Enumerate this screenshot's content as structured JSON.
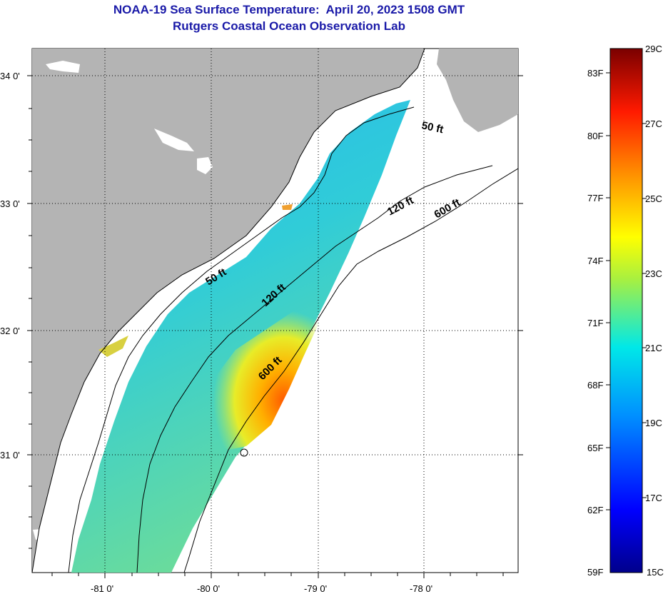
{
  "header": {
    "title": "NOAA-19 Sea Surface Temperature:  April 20, 2023 1508 GMT",
    "subtitle": "Rutgers Coastal Ocean Observation Lab"
  },
  "map": {
    "lat_labels": [
      "34 0'",
      "33 0'",
      "32 0'",
      "31 0'"
    ],
    "lon_labels": [
      "-81 0'",
      "-80 0'",
      "-79 0'",
      "-78 0'"
    ],
    "contour_labels": [
      "50 ft",
      "120 ft",
      "600 ft",
      "50 ft",
      "120 ft",
      "600 ft"
    ],
    "land_color": "#b4b4b4",
    "ocean_color": "#ffffff"
  },
  "colorbar": {
    "fahrenheit_labels": [
      "83F",
      "80F",
      "77F",
      "74F",
      "71F",
      "68F",
      "65F",
      "62F",
      "59F"
    ],
    "celsius_labels": [
      "29C",
      "27C",
      "25C",
      "23C",
      "21C",
      "19C",
      "17C",
      "15C"
    ],
    "range_c": [
      15,
      29
    ]
  }
}
